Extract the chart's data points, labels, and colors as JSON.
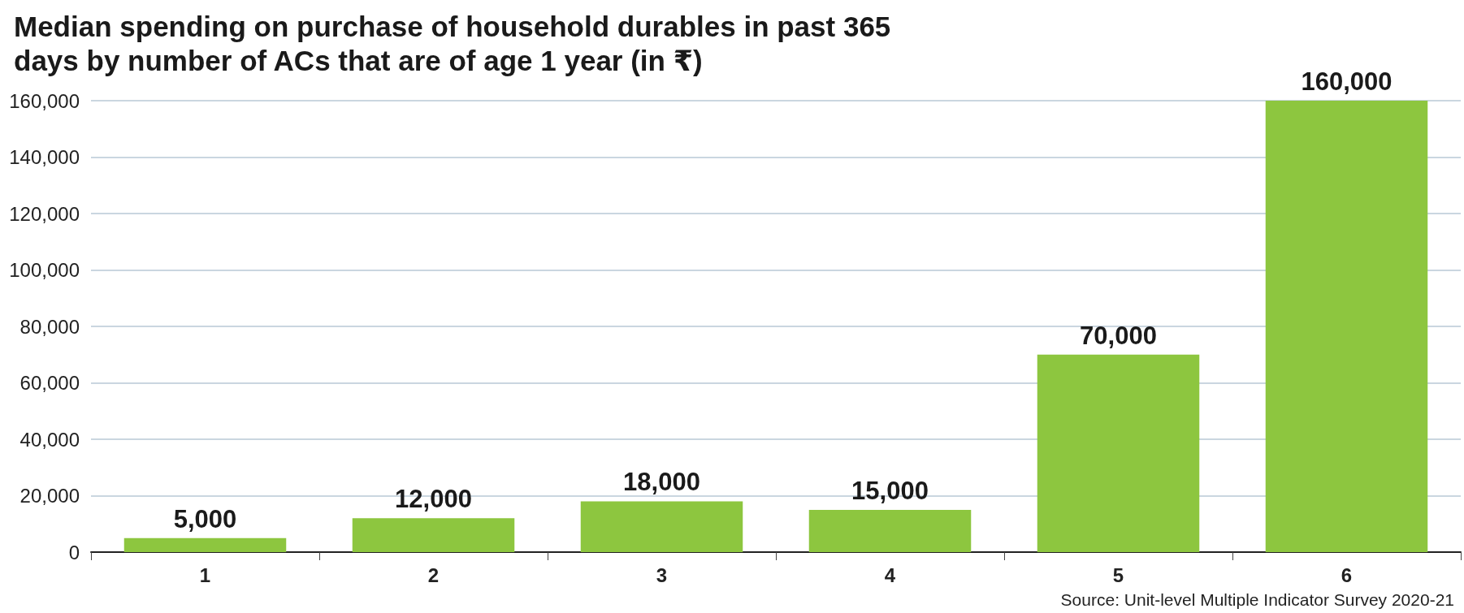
{
  "chart_data": {
    "type": "bar",
    "title": "Median spending on purchase of household durables in past 365 days by number of ACs that are of age 1 year (in ₹)",
    "categories": [
      "1",
      "2",
      "3",
      "4",
      "5",
      "6"
    ],
    "values": [
      5000,
      12000,
      18000,
      15000,
      70000,
      160000
    ],
    "value_labels": [
      "5,000",
      "12,000",
      "18,000",
      "15,000",
      "70,000",
      "160,000"
    ],
    "color": "#8dc63f",
    "ylim": [
      0,
      160000
    ],
    "yticks": [
      0,
      {
        "value": 20000,
        "label": "20,000"
      },
      {
        "value": 40000,
        "label": "40,000"
      },
      {
        "value": 60000,
        "label": "60,000"
      },
      {
        "value": 80000,
        "label": "80,000"
      },
      {
        "value": 100000,
        "label": "100,000"
      },
      {
        "value": 120000,
        "label": "120,000"
      },
      {
        "value": 140000,
        "label": "140,000"
      },
      {
        "value": 160000,
        "label": "160,000"
      }
    ],
    "grid": "y",
    "annotations": [
      "Source: Unit-level Multiple Indicator Survey 2020-21"
    ]
  }
}
